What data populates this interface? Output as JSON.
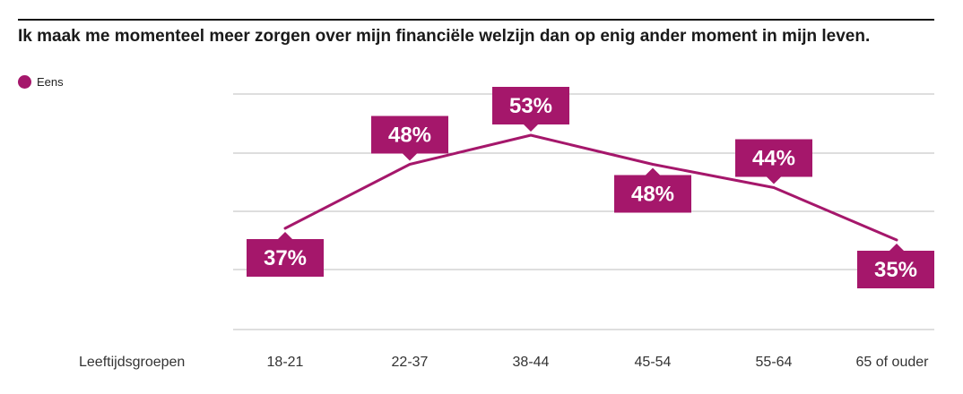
{
  "chart_data": {
    "type": "line",
    "title": "Ik maak me momenteel meer zorgen over mijn financiële welzijn dan op enig ander moment in mijn leven.",
    "xlabel": "Leeftijdsgroepen",
    "ylabel": "",
    "categories": [
      "18-21",
      "22-37",
      "38-44",
      "45-54",
      "55-64",
      "65 of ouder"
    ],
    "series": [
      {
        "name": "Eens",
        "values": [
          37,
          48,
          53,
          48,
          44,
          35
        ],
        "labels": [
          "37%",
          "48%",
          "53%",
          "48%",
          "44%",
          "35%"
        ],
        "label_position": [
          "below",
          "above",
          "above",
          "below",
          "above",
          "below"
        ],
        "color": "#a5176b"
      }
    ],
    "ylim": [
      30,
      60
    ],
    "grid": true,
    "legend_position": "top-left"
  }
}
